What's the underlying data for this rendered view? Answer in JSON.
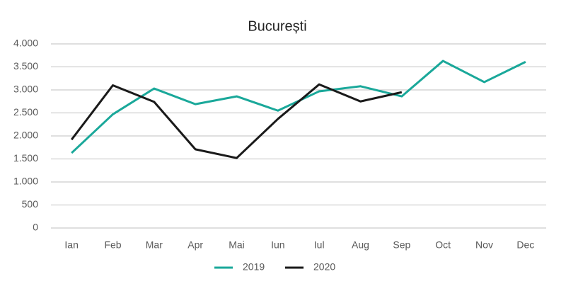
{
  "chart_data": {
    "type": "line",
    "title": "București",
    "categories": [
      "Ian",
      "Feb",
      "Mar",
      "Apr",
      "Mai",
      "Iun",
      "Iul",
      "Aug",
      "Sep",
      "Oct",
      "Nov",
      "Dec"
    ],
    "series": [
      {
        "name": "2019",
        "color": "#1aa89a",
        "values": [
          1630,
          2470,
          3030,
          2690,
          2860,
          2550,
          2970,
          3080,
          2860,
          3630,
          3170,
          3610
        ]
      },
      {
        "name": "2020",
        "color": "#1a1a1a",
        "values": [
          1920,
          3100,
          2740,
          1710,
          1520,
          2370,
          3120,
          2750,
          2950,
          null,
          null,
          null
        ]
      }
    ],
    "ylim": [
      0,
      4000
    ],
    "yticks": [
      0,
      500,
      {
        "value": 1000,
        "label": "1.000"
      },
      {
        "value": 1500,
        "label": "1.500"
      },
      {
        "value": 2000,
        "label": "2.000"
      },
      {
        "value": 2500,
        "label": "2.500"
      },
      {
        "value": 3000,
        "label": "3.000"
      },
      {
        "value": 3500,
        "label": "3.500"
      },
      {
        "value": 4000,
        "label": "4.000"
      }
    ],
    "grid": true,
    "legend": "bottom"
  }
}
